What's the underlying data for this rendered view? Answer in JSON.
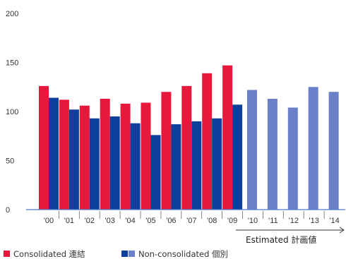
{
  "chart_data": {
    "type": "bar",
    "ylim": [
      0,
      200
    ],
    "yticks": [
      0,
      50,
      100,
      150,
      200
    ],
    "categories": [
      "'00",
      "'01",
      "'02",
      "'03",
      "'04",
      "'05",
      "'06",
      "'07",
      "'08",
      "'09",
      "'10",
      "'11",
      "'12",
      "'13",
      "'14"
    ],
    "series": [
      {
        "name": "Consolidated 連結",
        "color": "#e8183c",
        "values": [
          126,
          112,
          106,
          113,
          108,
          109,
          120,
          126,
          139,
          147,
          null,
          null,
          null,
          null,
          null
        ]
      },
      {
        "name": "Non-consolidated 個別",
        "color": "#0d3f9c",
        "values": [
          114,
          102,
          93,
          95,
          88,
          76,
          87,
          90,
          93,
          107,
          null,
          null,
          null,
          null,
          null
        ]
      },
      {
        "name": "Non-consolidated 個別 (Estimated)",
        "color": "#6a80c8",
        "values": [
          null,
          null,
          null,
          null,
          null,
          null,
          null,
          null,
          null,
          null,
          122,
          113,
          104,
          125,
          120
        ]
      }
    ],
    "legend": [
      {
        "label": "Consolidated 連結",
        "colors": [
          "#e8183c"
        ]
      },
      {
        "label": "Non-consolidated 個別",
        "colors": [
          "#0d3f9c",
          "#6a80c8"
        ]
      }
    ],
    "annotations": [
      {
        "text": "Estimated 計画値",
        "from_category": "'10",
        "arrow": true
      }
    ],
    "axis_color": "#4a7cc7",
    "grid": false,
    "legend_position": "bottom-left"
  }
}
